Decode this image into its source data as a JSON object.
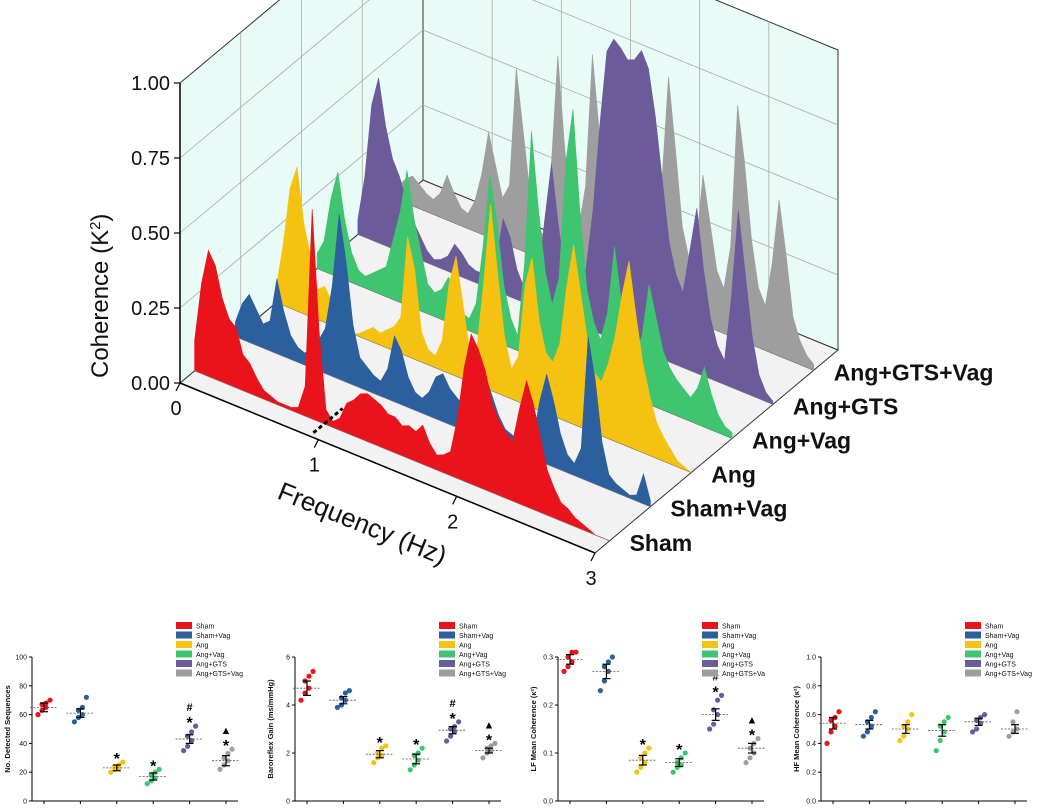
{
  "colors": {
    "Sham": "#e8131b",
    "Sham+Vag": "#2c5f9e",
    "Ang": "#f5c211",
    "Ang+Vag": "#3fc46f",
    "Ang+GTS": "#6b5b9a",
    "Ang+GTS+Vag": "#9e9e9e",
    "wall": "#e8fbf6",
    "floor": "#f2f2f2"
  },
  "chart_data": [
    {
      "type": "area",
      "title": "",
      "xlabel": "Frequency (Hz)",
      "ylabel": "Coherence (K²)",
      "ylabel_main": "Coherence (K",
      "ylabel_sup": "2",
      "ylabel_close": ")",
      "xlim": [
        0,
        3
      ],
      "ylim": [
        0,
        1
      ],
      "x_ticks": [
        "0",
        "1",
        "2",
        "3"
      ],
      "y_ticks": [
        "0.00",
        "0.25",
        "0.50",
        "0.75",
        "1.00"
      ],
      "x": [
        0.0,
        0.05,
        0.1,
        0.15,
        0.2,
        0.25,
        0.3,
        0.35,
        0.4,
        0.45,
        0.5,
        0.55,
        0.6,
        0.65,
        0.7,
        0.75,
        0.8,
        0.85,
        0.9,
        0.95,
        1.0,
        1.05,
        1.1,
        1.15,
        1.2,
        1.25,
        1.3,
        1.35,
        1.4,
        1.45,
        1.5,
        1.55,
        1.6,
        1.65,
        1.7,
        1.75,
        1.8,
        1.85,
        1.9,
        1.95,
        2.0,
        2.05,
        2.1,
        2.15,
        2.2,
        2.25,
        2.3,
        2.35,
        2.4,
        2.45,
        2.5,
        2.55,
        2.6,
        2.65,
        2.7,
        2.75,
        2.8,
        2.85,
        2.9,
        2.95,
        3.0
      ],
      "series": [
        {
          "name": "Sham",
          "values": [
            0.1,
            0.3,
            0.42,
            0.38,
            0.28,
            0.22,
            0.2,
            0.12,
            0.1,
            0.06,
            0.03,
            0.02,
            0.01,
            0.01,
            0.01,
            0.02,
            0.1,
            0.7,
            0.3,
            0.05,
            0.02,
            0.04,
            0.1,
            0.12,
            0.15,
            0.16,
            0.15,
            0.14,
            0.12,
            0.12,
            0.1,
            0.11,
            0.1,
            0.13,
            0.08,
            0.05,
            0.06,
            0.08,
            0.2,
            0.38,
            0.5,
            0.46,
            0.4,
            0.3,
            0.25,
            0.22,
            0.2,
            0.32,
            0.42,
            0.35,
            0.25,
            0.15,
            0.1,
            0.06,
            0.05,
            0.03,
            0.02,
            0.01,
            0.0,
            0.0,
            0.0
          ]
        },
        {
          "name": "Sham+Vag",
          "values": [
            0.05,
            0.12,
            0.16,
            0.12,
            0.08,
            0.1,
            0.25,
            0.15,
            0.08,
            0.05,
            0.04,
            0.06,
            0.1,
            0.15,
            0.3,
            0.55,
            0.4,
            0.2,
            0.1,
            0.08,
            0.06,
            0.05,
            0.1,
            0.22,
            0.18,
            0.1,
            0.06,
            0.05,
            0.08,
            0.14,
            0.16,
            0.12,
            0.1,
            0.08,
            0.1,
            0.18,
            0.22,
            0.16,
            0.1,
            0.06,
            0.05,
            0.04,
            0.05,
            0.06,
            0.2,
            0.3,
            0.22,
            0.12,
            0.06,
            0.04,
            0.1,
            0.48,
            0.35,
            0.15,
            0.05,
            0.03,
            0.02,
            0.01,
            0.02,
            0.1,
            0.02
          ]
        },
        {
          "name": "Ang",
          "values": [
            0.05,
            0.2,
            0.4,
            0.48,
            0.3,
            0.2,
            0.1,
            0.12,
            0.08,
            0.04,
            0.02,
            0.0,
            0.01,
            0.03,
            0.05,
            0.04,
            0.06,
            0.08,
            0.12,
            0.4,
            0.3,
            0.1,
            0.05,
            0.04,
            0.1,
            0.3,
            0.4,
            0.25,
            0.1,
            0.12,
            0.35,
            0.62,
            0.4,
            0.2,
            0.1,
            0.15,
            0.4,
            0.5,
            0.3,
            0.2,
            0.18,
            0.25,
            0.45,
            0.6,
            0.45,
            0.3,
            0.2,
            0.18,
            0.25,
            0.35,
            0.5,
            0.62,
            0.45,
            0.3,
            0.2,
            0.12,
            0.08,
            0.05,
            0.02,
            0.01,
            0.0
          ]
        },
        {
          "name": "Ang+Vag",
          "values": [
            0.05,
            0.1,
            0.25,
            0.35,
            0.2,
            0.1,
            0.05,
            0.04,
            0.06,
            0.08,
            0.1,
            0.2,
            0.3,
            0.45,
            0.3,
            0.2,
            0.1,
            0.08,
            0.1,
            0.15,
            0.12,
            0.05,
            0.04,
            0.1,
            0.3,
            0.55,
            0.4,
            0.2,
            0.1,
            0.05,
            0.3,
            0.75,
            0.5,
            0.3,
            0.2,
            0.3,
            0.7,
            0.88,
            0.55,
            0.3,
            0.2,
            0.15,
            0.25,
            0.48,
            0.3,
            0.2,
            0.15,
            0.22,
            0.4,
            0.3,
            0.2,
            0.15,
            0.12,
            0.1,
            0.08,
            0.12,
            0.2,
            0.12,
            0.06,
            0.03,
            0.02
          ]
        },
        {
          "name": "Ang+GTS",
          "values": [
            0.05,
            0.2,
            0.45,
            0.55,
            0.4,
            0.3,
            0.25,
            0.18,
            0.12,
            0.08,
            0.04,
            0.02,
            0.03,
            0.05,
            0.1,
            0.08,
            0.05,
            0.04,
            0.04,
            0.06,
            0.1,
            0.25,
            0.2,
            0.1,
            0.05,
            0.03,
            0.08,
            0.3,
            0.5,
            0.3,
            0.15,
            0.1,
            0.08,
            0.2,
            0.4,
            0.7,
            0.95,
            1.0,
            0.98,
            0.95,
            0.96,
            1.0,
            0.95,
            0.8,
            0.6,
            0.4,
            0.3,
            0.25,
            0.4,
            0.55,
            0.35,
            0.2,
            0.12,
            0.08,
            0.3,
            0.6,
            0.4,
            0.2,
            0.08,
            0.03,
            0.01
          ]
        },
        {
          "name": "Ang+GTS+Vag",
          "values": [
            0.05,
            0.08,
            0.1,
            0.08,
            0.06,
            0.05,
            0.08,
            0.15,
            0.1,
            0.06,
            0.05,
            0.1,
            0.2,
            0.35,
            0.25,
            0.15,
            0.2,
            0.6,
            0.4,
            0.2,
            0.1,
            0.08,
            0.3,
            0.7,
            0.4,
            0.2,
            0.15,
            0.3,
            0.75,
            0.5,
            0.25,
            0.15,
            0.2,
            0.4,
            0.7,
            0.55,
            0.3,
            0.2,
            0.4,
            0.78,
            0.55,
            0.3,
            0.2,
            0.25,
            0.5,
            0.35,
            0.2,
            0.15,
            0.3,
            0.78,
            0.6,
            0.35,
            0.2,
            0.15,
            0.3,
            0.52,
            0.35,
            0.15,
            0.08,
            0.04,
            0.02
          ]
        }
      ]
    },
    {
      "type": "scatter",
      "ylabel": "No. Detected Sequences",
      "ylim": [
        0,
        100
      ],
      "y_ticks": [
        "0",
        "20",
        "40",
        "60",
        "80",
        "100"
      ],
      "groups": [
        {
          "name": "Sham",
          "points": [
            60,
            63,
            65,
            67,
            68,
            70
          ],
          "mean": 65,
          "sem": 3,
          "mark": ""
        },
        {
          "name": "Sham+Vag",
          "points": [
            55,
            58,
            60,
            63,
            65,
            72
          ],
          "mean": 61,
          "sem": 3,
          "mark": ""
        },
        {
          "name": "Ang",
          "points": [
            20,
            22,
            23,
            24,
            25,
            27
          ],
          "mean": 23,
          "sem": 2,
          "mark": "*"
        },
        {
          "name": "Ang+Vag",
          "points": [
            12,
            14,
            16,
            18,
            20,
            22
          ],
          "mean": 17,
          "sem": 2.5,
          "mark": "*"
        },
        {
          "name": "Ang+GTS",
          "points": [
            35,
            38,
            42,
            45,
            48,
            52
          ],
          "mean": 43,
          "sem": 3,
          "mark": "#*"
        },
        {
          "name": "Ang+GTS+Vag",
          "points": [
            22,
            25,
            28,
            30,
            33,
            36
          ],
          "mean": 28,
          "sem": 3.5,
          "mark": "▲*"
        }
      ],
      "legend": [
        "Sham",
        "Sham+Vag",
        "Ang",
        "Ang+Vag",
        "Ang+GTS",
        "Ang+GTS+Vag"
      ]
    },
    {
      "type": "scatter",
      "ylabel": "Baroreflex Gain (ms/mmHg)",
      "ylim": [
        0,
        6
      ],
      "y_ticks": [
        "0",
        "2",
        "4",
        "6"
      ],
      "groups": [
        {
          "name": "Sham",
          "points": [
            4.2,
            4.5,
            4.7,
            5.0,
            5.2,
            5.4
          ],
          "mean": 4.7,
          "sem": 0.3,
          "mark": ""
        },
        {
          "name": "Sham+Vag",
          "points": [
            3.9,
            4.0,
            4.2,
            4.3,
            4.5,
            4.6
          ],
          "mean": 4.2,
          "sem": 0.15,
          "mark": ""
        },
        {
          "name": "Ang",
          "points": [
            1.6,
            1.8,
            1.9,
            2.0,
            2.2,
            2.3
          ],
          "mean": 1.95,
          "sem": 0.15,
          "mark": "*"
        },
        {
          "name": "Ang+Vag",
          "points": [
            1.3,
            1.5,
            1.7,
            1.9,
            2.0,
            2.2
          ],
          "mean": 1.75,
          "sem": 0.2,
          "mark": "*"
        },
        {
          "name": "Ang+GTS",
          "points": [
            2.5,
            2.7,
            2.9,
            3.0,
            3.1,
            3.3
          ],
          "mean": 2.95,
          "sem": 0.15,
          "mark": "#*"
        },
        {
          "name": "Ang+GTS+Vag",
          "points": [
            1.8,
            2.0,
            2.1,
            2.2,
            2.3,
            2.4
          ],
          "mean": 2.1,
          "sem": 0.1,
          "mark": "▲*"
        }
      ],
      "legend": [
        "Sham",
        "Sham+Vag",
        "Ang",
        "Ang+Vag",
        "Ang+GTS",
        "Ang+GTS+Vag"
      ]
    },
    {
      "type": "scatter",
      "ylabel": "LF Mean Coherence (κ²)",
      "ylim": [
        0,
        0.3
      ],
      "y_ticks": [
        "0.0",
        "0.1",
        "0.2",
        "0.3"
      ],
      "groups": [
        {
          "name": "Sham",
          "points": [
            0.27,
            0.28,
            0.29,
            0.3,
            0.31,
            0.31
          ],
          "mean": 0.295,
          "sem": 0.01,
          "mark": ""
        },
        {
          "name": "Sham+Vag",
          "points": [
            0.23,
            0.25,
            0.27,
            0.28,
            0.29,
            0.3
          ],
          "mean": 0.27,
          "sem": 0.015,
          "mark": ""
        },
        {
          "name": "Ang",
          "points": [
            0.06,
            0.07,
            0.08,
            0.09,
            0.1,
            0.11
          ],
          "mean": 0.085,
          "sem": 0.01,
          "mark": "*"
        },
        {
          "name": "Ang+Vag",
          "points": [
            0.06,
            0.07,
            0.075,
            0.08,
            0.09,
            0.1
          ],
          "mean": 0.08,
          "sem": 0.008,
          "mark": "*"
        },
        {
          "name": "Ang+GTS",
          "points": [
            0.15,
            0.16,
            0.18,
            0.19,
            0.21,
            0.22
          ],
          "mean": 0.18,
          "sem": 0.012,
          "mark": "#*"
        },
        {
          "name": "Ang+GTS+Vag",
          "points": [
            0.08,
            0.09,
            0.1,
            0.11,
            0.12,
            0.13
          ],
          "mean": 0.11,
          "sem": 0.01,
          "mark": "▲*"
        }
      ],
      "legend": [
        "Sham",
        "Sham+Vag",
        "Ang",
        "Ang+Vag",
        "Ang+GTS",
        "Ang+GTS+Va"
      ]
    },
    {
      "type": "scatter",
      "ylabel": "HF Mean Coherence (κ²)",
      "ylim": [
        0,
        1
      ],
      "y_ticks": [
        "0.0",
        "0.2",
        "0.4",
        "0.6",
        "0.8",
        "1.0"
      ],
      "groups": [
        {
          "name": "Sham",
          "points": [
            0.4,
            0.48,
            0.52,
            0.56,
            0.58,
            0.62
          ],
          "mean": 0.54,
          "sem": 0.04,
          "mark": ""
        },
        {
          "name": "Sham+Vag",
          "points": [
            0.45,
            0.48,
            0.52,
            0.55,
            0.58,
            0.62
          ],
          "mean": 0.53,
          "sem": 0.03,
          "mark": ""
        },
        {
          "name": "Ang",
          "points": [
            0.42,
            0.45,
            0.5,
            0.52,
            0.55,
            0.6
          ],
          "mean": 0.5,
          "sem": 0.03,
          "mark": ""
        },
        {
          "name": "Ang+Vag",
          "points": [
            0.35,
            0.42,
            0.48,
            0.52,
            0.55,
            0.58
          ],
          "mean": 0.49,
          "sem": 0.04,
          "mark": ""
        },
        {
          "name": "Ang+GTS",
          "points": [
            0.48,
            0.5,
            0.54,
            0.56,
            0.58,
            0.6
          ],
          "mean": 0.55,
          "sem": 0.025,
          "mark": ""
        },
        {
          "name": "Ang+GTS+Vag",
          "points": [
            0.45,
            0.48,
            0.5,
            0.55,
            0.62
          ],
          "mean": 0.5,
          "sem": 0.03,
          "mark": ""
        }
      ],
      "legend": [
        "Sham",
        "Sham+Vag",
        "Ang",
        "Ang+Vag",
        "Ang+GTS",
        "Ang+GTS+Vag"
      ]
    }
  ]
}
